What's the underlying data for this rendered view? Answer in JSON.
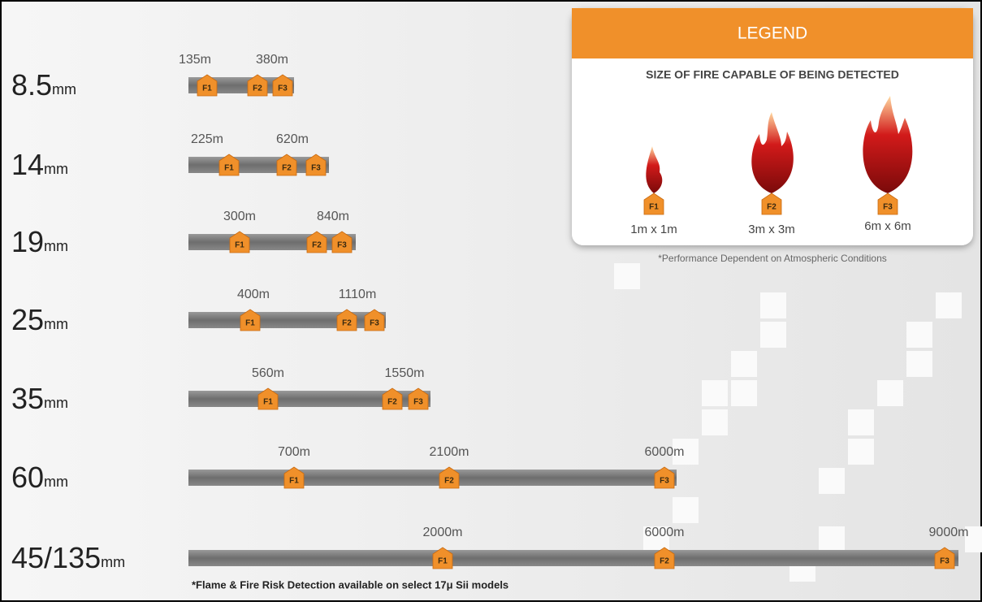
{
  "unit": "mm",
  "rows": [
    {
      "lens": "8.5",
      "markers": [
        {
          "label": "135m",
          "tags": [
            "F1"
          ]
        },
        {
          "label": "380m",
          "tags": [
            "F2",
            "F3"
          ]
        }
      ]
    },
    {
      "lens": "14",
      "markers": [
        {
          "label": "225m",
          "tags": [
            "F1"
          ]
        },
        {
          "label": "620m",
          "tags": [
            "F2",
            "F3"
          ]
        }
      ]
    },
    {
      "lens": "19",
      "markers": [
        {
          "label": "300m",
          "tags": [
            "F1"
          ]
        },
        {
          "label": "840m",
          "tags": [
            "F2",
            "F3"
          ]
        }
      ]
    },
    {
      "lens": "25",
      "markers": [
        {
          "label": "400m",
          "tags": [
            "F1"
          ]
        },
        {
          "label": "1110m",
          "tags": [
            "F2",
            "F3"
          ]
        }
      ]
    },
    {
      "lens": "35",
      "markers": [
        {
          "label": "560m",
          "tags": [
            "F1"
          ]
        },
        {
          "label": "1550m",
          "tags": [
            "F2",
            "F3"
          ]
        }
      ]
    },
    {
      "lens": "60",
      "markers": [
        {
          "label": "700m",
          "tags": [
            "F1"
          ]
        },
        {
          "label": "2100m",
          "tags": [
            "F2"
          ]
        },
        {
          "label": "6000m",
          "tags": [
            "F3"
          ]
        }
      ]
    },
    {
      "lens": "45/135",
      "markers": [
        {
          "label": "2000m",
          "tags": [
            "F1"
          ]
        },
        {
          "label": "6000m",
          "tags": [
            "F2"
          ]
        },
        {
          "label": "9000m",
          "tags": [
            "F3"
          ]
        }
      ]
    }
  ],
  "footnote": "*Flame & Fire Risk Detection available on select 17μ Sii models",
  "legend": {
    "title": "LEGEND",
    "subtitle": "SIZE OF FIRE CAPABLE OF BEING DETECTED",
    "items": [
      {
        "tag": "F1",
        "size": "1m x 1m"
      },
      {
        "tag": "F2",
        "size": "3m x 3m"
      },
      {
        "tag": "F3",
        "size": "6m x 6m"
      }
    ],
    "note": "*Performance Dependent on Atmospheric Conditions"
  }
}
